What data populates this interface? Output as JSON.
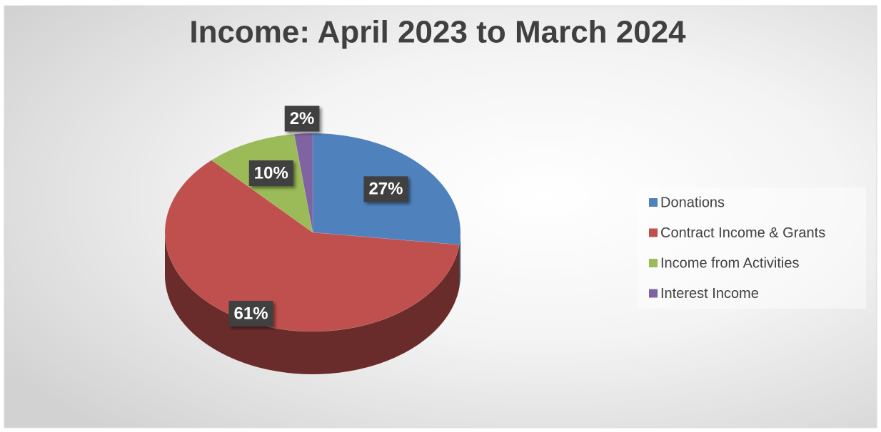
{
  "chart_data": {
    "type": "pie",
    "title": "Income: April 2023 to March 2024",
    "categories": [
      "Donations",
      "Contract Income & Grants",
      "Income from Activities",
      "Interest Income"
    ],
    "values": [
      27,
      61,
      10,
      2
    ],
    "value_labels": [
      "27%",
      "61%",
      "10%",
      "2%"
    ],
    "colors": [
      "#4f81bd",
      "#c0504d",
      "#9bbb59",
      "#8064a2"
    ],
    "legend": "right"
  }
}
